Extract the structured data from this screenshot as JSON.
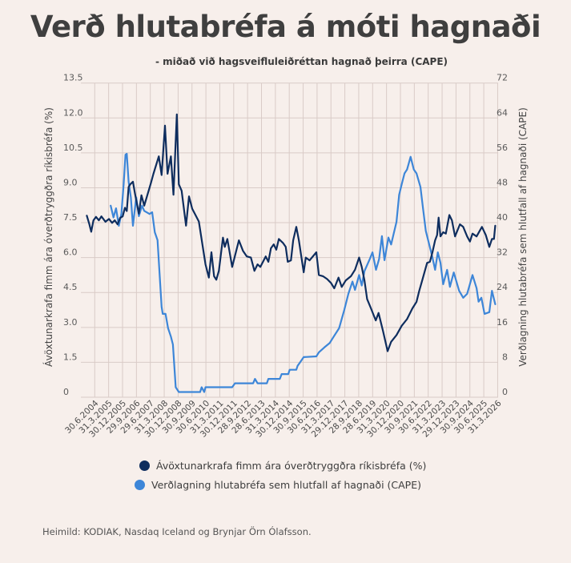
{
  "chart_data": {
    "type": "line",
    "title": "Verð hlutabréfa á móti hagnaði",
    "subtitle": "- miðað við hagsveifluleiðréttan hagnað þeirra (CAPE)",
    "ylabel": "Ávöxtunarkrafa fimm ára óverðtryggðra ríkisbréfa (%)",
    "y2label": "Verðlagning hlutabréfa sem hlutfall af hagnaði (CAPE)",
    "ylim": [
      0,
      13.5
    ],
    "y2lim": [
      0,
      72
    ],
    "yticks": [
      "0",
      "1.5",
      "3.0",
      "4.5",
      "6.0",
      "7.5",
      "9.0",
      "10.5",
      "12.0",
      "13.5"
    ],
    "y2ticks": [
      "0",
      "8",
      "16",
      "24",
      "32",
      "40",
      "48",
      "56",
      "64",
      "72"
    ],
    "xlim": [
      2003.85,
      2026.3
    ],
    "xtick_start": 2004.5,
    "xtick_step_years": 0.75,
    "xticks": [
      "30.6.2004",
      "31.3.2005",
      "30.12.2005",
      "29.9.2006",
      "29.6.2007",
      "31.3.2008",
      "30.12.2008",
      "30.9.2009",
      "30.6.2010",
      "31.3.2011",
      "30.12.2011",
      "28.9.2012",
      "28.6.2013",
      "31.3.2014",
      "30.12.2014",
      "30.9.2015",
      "30.6.2016",
      "31.3.2017",
      "29.12.2017",
      "28.9.2018",
      "28.6.2019",
      "31.3.2020",
      "30.12.2020",
      "30.9.2021",
      "30.6.2022",
      "31.3.2023",
      "29.12.2023",
      "30.9.2024",
      "30.6.2025",
      "31.3.2026"
    ],
    "grid": true,
    "legend_position": "bottom-center",
    "series": [
      {
        "name": "Ávöxtunarkrafa fimm ára óverðtryggðra ríkisbréfa (%)",
        "axis": "left",
        "color": "#0e2d5e",
        "x": [
          2004.07,
          2004.21,
          2004.31,
          2004.43,
          2004.57,
          2004.72,
          2004.86,
          2005.08,
          2005.27,
          2005.44,
          2005.58,
          2005.73,
          2005.87,
          2006.01,
          2006.13,
          2006.23,
          2006.33,
          2006.42,
          2006.56,
          2006.66,
          2006.77,
          2006.88,
          2007.02,
          2007.17,
          2007.53,
          2007.67,
          2007.96,
          2008.11,
          2008.29,
          2008.43,
          2008.61,
          2008.75,
          2008.93,
          2009.04,
          2009.19,
          2009.43,
          2009.59,
          2009.76,
          2009.9,
          2010.12,
          2010.48,
          2010.66,
          2010.8,
          2010.94,
          2011.06,
          2011.2,
          2011.42,
          2011.52,
          2011.66,
          2011.92,
          2012.28,
          2012.5,
          2012.71,
          2012.93,
          2013.12,
          2013.29,
          2013.44,
          2013.73,
          2013.87,
          2014.01,
          2014.16,
          2014.3,
          2014.44,
          2014.66,
          2014.81,
          2014.92,
          2015.09,
          2015.21,
          2015.38,
          2015.52,
          2015.78,
          2015.89,
          2016.1,
          2016.46,
          2016.6,
          2016.82,
          2017.04,
          2017.25,
          2017.43,
          2017.66,
          2017.83,
          2018.05,
          2018.33,
          2018.55,
          2018.77,
          2018.91,
          2019.06,
          2019.2,
          2019.41,
          2019.67,
          2019.82,
          2020.06,
          2020.31,
          2020.5,
          2020.79,
          2021.07,
          2021.36,
          2021.65,
          2021.87,
          2022.01,
          2022.16,
          2022.22,
          2022.44,
          2022.59,
          2022.73,
          2022.87,
          2022.98,
          2023.06,
          2023.16,
          2023.31,
          2023.45,
          2023.64,
          2023.78,
          2023.95,
          2024.21,
          2024.39,
          2024.6,
          2024.75,
          2024.89,
          2025.11,
          2025.4,
          2025.61,
          2025.8,
          2025.94,
          2026.05,
          2026.12
        ],
        "values": [
          7.8,
          7.43,
          7.11,
          7.6,
          7.75,
          7.6,
          7.77,
          7.54,
          7.66,
          7.49,
          7.6,
          7.43,
          7.71,
          7.77,
          8.14,
          8.0,
          9.03,
          9.15,
          9.26,
          8.8,
          8.34,
          7.89,
          8.68,
          8.23,
          9.2,
          9.6,
          10.35,
          9.55,
          11.67,
          9.6,
          10.35,
          8.7,
          12.15,
          9.15,
          8.87,
          7.37,
          8.63,
          8.1,
          7.89,
          7.55,
          5.71,
          5.14,
          6.23,
          5.2,
          5.05,
          5.43,
          6.86,
          6.46,
          6.8,
          5.6,
          6.74,
          6.29,
          6.05,
          6.0,
          5.43,
          5.71,
          5.6,
          6.05,
          5.82,
          6.4,
          6.57,
          6.34,
          6.8,
          6.63,
          6.46,
          5.82,
          5.88,
          6.74,
          7.32,
          6.74,
          5.37,
          6.0,
          5.88,
          6.23,
          5.25,
          5.2,
          5.08,
          4.91,
          4.68,
          5.14,
          4.74,
          5.02,
          5.2,
          5.48,
          6.0,
          5.6,
          5.02,
          4.22,
          3.82,
          3.3,
          3.62,
          2.84,
          1.98,
          2.38,
          2.67,
          3.07,
          3.36,
          3.82,
          4.1,
          4.56,
          4.97,
          5.14,
          5.77,
          5.82,
          6.23,
          6.74,
          6.97,
          7.72,
          6.91,
          7.09,
          7.03,
          7.83,
          7.6,
          6.91,
          7.43,
          7.32,
          6.91,
          6.69,
          7.03,
          6.91,
          7.32,
          6.97,
          6.46,
          6.8,
          6.8,
          7.37
        ]
      },
      {
        "name": "Verðlagning hlutabréfa sem hlutfall af hagnaði (CAPE)",
        "axis": "right",
        "color": "#3d86d8",
        "x": [
          2005.36,
          2005.51,
          2005.65,
          2005.8,
          2005.94,
          2006.06,
          2006.16,
          2006.23,
          2006.33,
          2006.45,
          2006.56,
          2006.74,
          2006.88,
          2007.05,
          2007.17,
          2007.46,
          2007.6,
          2007.74,
          2007.89,
          2008.11,
          2008.17,
          2008.32,
          2008.46,
          2008.61,
          2008.72,
          2008.87,
          2009.04,
          2010.19,
          2010.27,
          2010.41,
          2010.48,
          2011.92,
          2012.07,
          2013.05,
          2013.15,
          2013.29,
          2013.79,
          2013.87,
          2014.49,
          2014.59,
          2014.95,
          2015.02,
          2015.38,
          2015.45,
          2015.6,
          2015.78,
          2016.46,
          2016.6,
          2016.89,
          2017.18,
          2017.4,
          2017.69,
          2017.97,
          2018.19,
          2018.41,
          2018.55,
          2018.77,
          2018.91,
          2019.06,
          2019.35,
          2019.49,
          2019.68,
          2019.85,
          2020.0,
          2020.14,
          2020.35,
          2020.5,
          2020.79,
          2020.93,
          2021.07,
          2021.22,
          2021.36,
          2021.55,
          2021.72,
          2021.87,
          2022.08,
          2022.22,
          2022.37,
          2022.59,
          2022.73,
          2022.87,
          2023.02,
          2023.16,
          2023.31,
          2023.52,
          2023.67,
          2023.88,
          2024.17,
          2024.39,
          2024.6,
          2024.89,
          2025.11,
          2025.22,
          2025.37,
          2025.54,
          2025.8,
          2025.94,
          2026.12
        ],
        "values": [
          43.9,
          41.2,
          43.3,
          39.3,
          42.1,
          48.8,
          55.6,
          55.8,
          49.4,
          45.8,
          39.3,
          45.8,
          41.5,
          43.9,
          42.7,
          42.0,
          42.4,
          37.8,
          36.0,
          20.7,
          19.1,
          19.1,
          15.8,
          13.9,
          12.1,
          2.3,
          1.2,
          1.2,
          2.3,
          1.2,
          2.3,
          2.3,
          3.2,
          3.2,
          4.2,
          3.2,
          3.2,
          4.2,
          4.2,
          5.3,
          5.3,
          6.3,
          6.3,
          7.2,
          8.1,
          9.2,
          9.36,
          10.3,
          11.4,
          12.4,
          13.9,
          15.8,
          20.0,
          23.7,
          26.5,
          24.6,
          28.0,
          25.6,
          28.9,
          31.7,
          33.2,
          29.2,
          31.7,
          36.9,
          31.4,
          36.6,
          35.0,
          40.2,
          46.4,
          48.8,
          51.3,
          52.2,
          55.1,
          52.2,
          51.3,
          48.2,
          43.3,
          38.1,
          34.4,
          32.0,
          29.2,
          33.2,
          30.8,
          25.9,
          29.2,
          25.3,
          28.6,
          24.4,
          22.8,
          23.7,
          28.0,
          25.0,
          21.9,
          22.8,
          19.1,
          19.5,
          24.4,
          21.3
        ]
      }
    ]
  },
  "colors": {
    "background": "#f7efeb",
    "grid": "#d9cbc7",
    "series_dark": "#0e2d5e",
    "series_light": "#3d86d8"
  },
  "legend": {
    "items": [
      "Ávöxtunarkrafa fimm ára óverðtryggðra ríkisbréfa (%)",
      "Verðlagning hlutabréfa sem hlutfall af hagnaði (CAPE)"
    ]
  },
  "footer": {
    "source": "Heimild: KODIAK, Nasdaq Iceland og Brynjar Örn Ólafsson."
  }
}
